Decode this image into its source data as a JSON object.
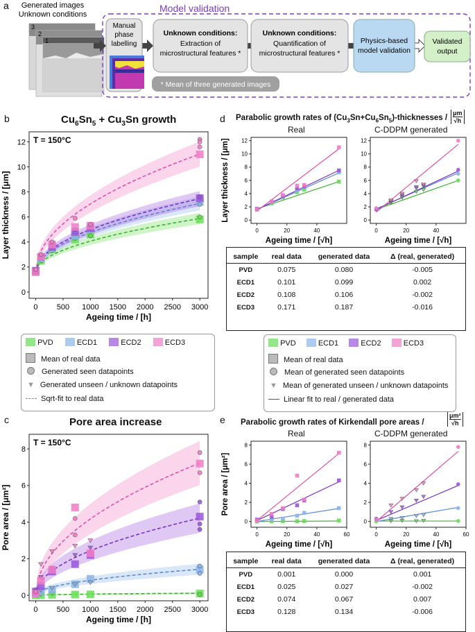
{
  "colors": {
    "PVD": "#66dd55",
    "ECD1": "#8ab4e8",
    "ECD2": "#9a55dc",
    "ECD3": "#f07cc4",
    "purple_frame": "#7a3cc8",
    "box_fill": "#e4e4e4",
    "physics_fill": "#b9d8f2",
    "validated_fill": "#d4f0c8"
  },
  "panel_a": {
    "label": "a",
    "gen_title_line1": "Generated images",
    "gen_title_line2": "Unknown conditions",
    "stack_numbers": [
      "3",
      "2",
      "1"
    ],
    "model_validation": "Model validation",
    "box1": [
      "Manual",
      "phase",
      "labelling"
    ],
    "box2_title": "Unknown conditions:",
    "box2_line1": "Extraction of",
    "box2_line2": "microstructural features *",
    "box3_title": "Unknown conditions:",
    "box3_line1": "Quantification of",
    "box3_line2": "microstructural features *",
    "box4": [
      "Physics-based",
      "model validation"
    ],
    "box5": [
      "Validated",
      "output"
    ],
    "note": "* Mean of three generated images"
  },
  "panel_b": {
    "label": "b",
    "title_parts": [
      "Cu",
      "6",
      "Sn",
      "5",
      " + Cu",
      "3",
      "Sn growth"
    ],
    "temp": "T = 150°C"
  },
  "panel_c": {
    "label": "c",
    "title": "Pore area increase",
    "temp": "T = 150°C"
  },
  "panel_d": {
    "label": "d",
    "title_pre": "Parabolic growth rates of (Cu",
    "title_mid": "Sn+Cu",
    "title_sub1": "3",
    "title_sub2": "6",
    "title_sub3": "5",
    "title_post": ")-thicknesses / ",
    "unit_num": "μm",
    "unit_den": "√h",
    "sub_real": "Real",
    "sub_gen": "C-DDPM generated",
    "table": {
      "headers": [
        "sample",
        "real data",
        "generated data",
        "Δ (real, generated)"
      ],
      "rows": [
        [
          "PVD",
          "0.075",
          "0.080",
          "-0.005"
        ],
        [
          "ECD1",
          "0.101",
          "0.099",
          "0.002"
        ],
        [
          "ECD2",
          "0.108",
          "0.106",
          "-0.002"
        ],
        [
          "ECD3",
          "0.171",
          "0.187",
          "-0.016"
        ]
      ]
    }
  },
  "panel_e": {
    "label": "e",
    "title": "Parabolic growth rates of Kirkendall pore areas / ",
    "unit_num": "μm²",
    "unit_den": "√h",
    "sub_real": "Real",
    "sub_gen": "C-DDPM generated",
    "table": {
      "headers": [
        "sample",
        "real data",
        "generated data",
        "Δ (real, generated)"
      ],
      "rows": [
        [
          "PVD",
          "0.001",
          "0.000",
          "0.001"
        ],
        [
          "ECD1",
          "0.025",
          "0.027",
          "-0.002"
        ],
        [
          "ECD2",
          "0.074",
          "0.067",
          "0.007"
        ],
        [
          "ECD3",
          "0.128",
          "0.134",
          "-0.006"
        ]
      ]
    }
  },
  "legend_left": {
    "series": [
      "PVD",
      "ECD1",
      "ECD2",
      "ECD3"
    ],
    "mean_real": "Mean of real data",
    "gen_seen": "Generated seen datapoints",
    "gen_unseen": "Generated unseen / unknown datapoints",
    "fit": "Sqrt-fit to real data"
  },
  "legend_right": {
    "series": [
      "PVD",
      "ECD1",
      "ECD2",
      "ECD3"
    ],
    "mean_real": "Mean of real data",
    "gen_seen": "Mean of generated seen datapoints",
    "gen_unseen": "Mean of generated unseen / unknown datapoints",
    "fit": "Linear fit to real / generated data"
  },
  "chart_data": [
    {
      "id": "b",
      "type": "scatter",
      "title": "Cu6Sn5 + Cu3Sn growth",
      "xlabel": "Ageing time / [h]",
      "ylabel": "Layer thickness / [μm]",
      "xlim": [
        -120,
        3150
      ],
      "ylim": [
        -0.5,
        12.8
      ],
      "xticks": [
        0,
        500,
        1000,
        1500,
        2000,
        2500,
        3000
      ],
      "yticks": [
        0,
        2,
        4,
        6,
        8,
        10,
        12
      ],
      "fit": "sqrt",
      "x": [
        0,
        96,
        300,
        720,
        1000,
        3000
      ],
      "series": [
        {
          "name": "PVD",
          "mean": [
            1.6,
            2.5,
            3.4,
            4.2,
            4.6,
            5.8
          ],
          "fit_a": 1.6,
          "fit_k": 0.078,
          "band": 0.45,
          "seen": [
            [
              0,
              1.55
            ],
            [
              96,
              2.5
            ],
            [
              300,
              3.3
            ],
            [
              720,
              4.3
            ],
            [
              1000,
              4.5
            ],
            [
              3000,
              6.0
            ]
          ],
          "unseen": []
        },
        {
          "name": "ECD1",
          "mean": [
            1.6,
            2.7,
            3.5,
            4.5,
            5.0,
            7.2
          ],
          "fit_a": 1.6,
          "fit_k": 0.1,
          "band": 0.55,
          "seen": [
            [
              0,
              1.7
            ],
            [
              96,
              2.8
            ],
            [
              300,
              3.6
            ],
            [
              720,
              4.8
            ],
            [
              1000,
              5.1
            ],
            [
              3000,
              7.0
            ]
          ],
          "unseen": []
        },
        {
          "name": "ECD2",
          "mean": [
            1.7,
            2.8,
            3.6,
            4.8,
            5.1,
            7.5
          ],
          "fit_a": 1.6,
          "fit_k": 0.107,
          "band": 0.6,
          "seen": [
            [
              0,
              1.6
            ],
            [
              96,
              2.9
            ],
            [
              300,
              3.8
            ],
            [
              720,
              5.0
            ],
            [
              1000,
              5.3
            ],
            [
              3000,
              7.6
            ]
          ],
          "unseen": []
        },
        {
          "name": "ECD3",
          "mean": [
            1.6,
            2.8,
            3.8,
            5.2,
            5.3,
            11.0
          ],
          "fit_a": 1.6,
          "fit_k": 0.172,
          "band": 1.0,
          "seen": [
            [
              0,
              1.8
            ],
            [
              96,
              3.0
            ],
            [
              300,
              4.0
            ],
            [
              720,
              5.9
            ],
            [
              1000,
              5.4
            ],
            [
              3000,
              12.2
            ],
            [
              3000,
              12.0
            ],
            [
              3000,
              11.6
            ]
          ],
          "unseen": []
        }
      ]
    },
    {
      "id": "c",
      "type": "scatter",
      "title": "Pore area increase",
      "xlabel": "Ageing time / [h]",
      "ylabel": "Pore area / [μm²]",
      "xlim": [
        -120,
        3150
      ],
      "ylim": [
        -0.3,
        8.8
      ],
      "xticks": [
        0,
        500,
        1000,
        1500,
        2000,
        2500,
        3000
      ],
      "yticks": [
        0,
        2,
        4,
        6,
        8
      ],
      "fit": "sqrt",
      "x": [
        0,
        96,
        300,
        720,
        1000,
        3000
      ],
      "series": [
        {
          "name": "PVD",
          "mean": [
            0.0,
            0.02,
            0.03,
            0.04,
            0.05,
            0.1
          ],
          "fit_a": 0.0,
          "fit_k": 0.002,
          "band": 0.05,
          "seen": [
            [
              0,
              0.02
            ],
            [
              3000,
              0.05
            ]
          ],
          "unseen": [
            [
              96,
              0.05
            ],
            [
              300,
              0.1
            ]
          ]
        },
        {
          "name": "ECD1",
          "mean": [
            0.1,
            0.2,
            0.3,
            0.6,
            0.9,
            1.4
          ],
          "fit_a": 0.0,
          "fit_k": 0.026,
          "band": 0.3,
          "seen": [
            [
              0,
              0.2
            ],
            [
              3000,
              1.6
            ],
            [
              3000,
              1.2
            ]
          ],
          "unseen": [
            [
              96,
              0.3
            ],
            [
              300,
              0.4
            ],
            [
              720,
              0.6
            ],
            [
              1000,
              0.7
            ]
          ]
        },
        {
          "name": "ECD2",
          "mean": [
            0.2,
            0.5,
            1.3,
            1.7,
            2.2,
            4.3
          ],
          "fit_a": 0.0,
          "fit_k": 0.077,
          "band": 0.8,
          "seen": [
            [
              0,
              0.3
            ],
            [
              3000,
              5.1
            ],
            [
              3000,
              3.9
            ],
            [
              3000,
              3.6
            ]
          ],
          "unseen": [
            [
              96,
              1.0
            ],
            [
              300,
              1.5
            ],
            [
              720,
              2.2
            ],
            [
              1000,
              2.6
            ]
          ]
        },
        {
          "name": "ECD3",
          "mean": [
            0.1,
            0.8,
            1.4,
            4.8,
            2.3,
            7.2
          ],
          "fit_a": 0.0,
          "fit_k": 0.132,
          "band": 1.2,
          "seen": [
            [
              0,
              0.2
            ],
            [
              720,
              4.2
            ],
            [
              720,
              3.3
            ],
            [
              3000,
              7.8
            ],
            [
              3000,
              6.7
            ]
          ],
          "unseen": [
            [
              96,
              1.7
            ],
            [
              300,
              2.4
            ],
            [
              720,
              2.7
            ],
            [
              1000,
              3.0
            ]
          ]
        }
      ]
    },
    {
      "id": "d_real",
      "type": "scatter",
      "title": "Real",
      "xlabel": "Ageing time / [√h]",
      "ylabel": "Layer thickness / [μm]",
      "xlim": [
        -4,
        60
      ],
      "ylim": [
        -0.5,
        12.5
      ],
      "xticks": [
        0,
        20,
        40
      ],
      "yticks": [
        0,
        2,
        4,
        6,
        8,
        10,
        12
      ],
      "x": [
        0,
        9.8,
        17.3,
        26.8,
        31.6,
        54.8
      ],
      "series": [
        {
          "name": "PVD",
          "points": [
            1.6,
            2.5,
            3.4,
            4.2,
            4.6,
            5.8
          ],
          "slope": 0.075,
          "intercept": 1.7
        },
        {
          "name": "ECD1",
          "points": [
            1.6,
            2.7,
            3.5,
            4.5,
            5.0,
            7.2
          ],
          "slope": 0.101,
          "intercept": 1.6
        },
        {
          "name": "ECD2",
          "points": [
            1.7,
            2.8,
            3.6,
            4.8,
            5.1,
            7.5
          ],
          "slope": 0.108,
          "intercept": 1.6
        },
        {
          "name": "ECD3",
          "points": [
            1.6,
            2.8,
            3.8,
            5.2,
            5.3,
            11.0
          ],
          "slope": 0.171,
          "intercept": 1.4
        }
      ]
    },
    {
      "id": "d_gen",
      "type": "scatter",
      "title": "C-DDPM generated",
      "xlabel": "Ageing time / [√h]",
      "ylabel": "",
      "xlim": [
        -4,
        60
      ],
      "ylim": [
        -0.5,
        12.5
      ],
      "xticks": [
        0,
        20,
        40
      ],
      "yticks": [
        0,
        2,
        4,
        6,
        8,
        10,
        12
      ],
      "x": [
        0,
        9.8,
        17.3,
        26.8,
        31.6,
        54.8
      ],
      "series": [
        {
          "name": "PVD",
          "points": [
            1.6,
            2.6,
            3.4,
            4.3,
            4.6,
            6.0
          ],
          "slope": 0.08,
          "intercept": 1.6
        },
        {
          "name": "ECD1",
          "points": [
            1.7,
            2.8,
            3.6,
            4.8,
            5.1,
            7.0
          ],
          "slope": 0.099,
          "intercept": 1.7
        },
        {
          "name": "ECD2",
          "points": [
            1.6,
            2.9,
            3.8,
            5.0,
            5.3,
            7.6
          ],
          "slope": 0.106,
          "intercept": 1.6
        },
        {
          "name": "ECD3",
          "points": [
            1.8,
            3.0,
            4.0,
            5.9,
            5.4,
            12.0
          ],
          "slope": 0.187,
          "intercept": 1.2
        }
      ]
    },
    {
      "id": "e_real",
      "type": "scatter",
      "title": "Real",
      "xlabel": "Ageing time / [√h]",
      "ylabel": "Pore area / [μm²]",
      "xlim": [
        -4,
        60
      ],
      "ylim": [
        -0.6,
        8.4
      ],
      "xticks": [
        0,
        20,
        40,
        60
      ],
      "yticks": [
        0,
        2,
        4,
        6,
        8
      ],
      "x": [
        0,
        9.8,
        17.3,
        26.8,
        31.6,
        54.8
      ],
      "series": [
        {
          "name": "PVD",
          "points": [
            0.0,
            0.02,
            0.03,
            0.04,
            0.05,
            0.1
          ],
          "slope": 0.001,
          "intercept": 0.0
        },
        {
          "name": "ECD1",
          "points": [
            0.1,
            0.2,
            0.3,
            0.6,
            0.9,
            1.4
          ],
          "slope": 0.025,
          "intercept": 0.0
        },
        {
          "name": "ECD2",
          "points": [
            0.2,
            0.5,
            1.3,
            1.7,
            2.2,
            4.3
          ],
          "slope": 0.074,
          "intercept": 0.1
        },
        {
          "name": "ECD3",
          "points": [
            0.1,
            0.8,
            1.4,
            4.8,
            2.3,
            7.2
          ],
          "slope": 0.128,
          "intercept": 0.1
        }
      ]
    },
    {
      "id": "e_gen",
      "type": "scatter",
      "title": "C-DDPM generated",
      "xlabel": "Ageing time / [√h]",
      "ylabel": "",
      "xlim": [
        -4,
        60
      ],
      "ylim": [
        -0.6,
        8.4
      ],
      "xticks": [
        0,
        20,
        40,
        60
      ],
      "yticks": [
        0,
        2,
        4,
        6,
        8
      ],
      "x": [
        0,
        9.8,
        17.3,
        26.8,
        31.6,
        54.8
      ],
      "series": [
        {
          "name": "PVD",
          "points": [
            0.0,
            0.05,
            0.1,
            0.05,
            0.1,
            0.05
          ],
          "slope": 0.0,
          "intercept": 0.05
        },
        {
          "name": "ECD1",
          "points": [
            0.2,
            0.3,
            0.4,
            0.6,
            0.7,
            1.4
          ],
          "slope": 0.027,
          "intercept": 0.0
        },
        {
          "name": "ECD2",
          "points": [
            0.3,
            1.0,
            1.5,
            2.2,
            2.6,
            3.9
          ],
          "slope": 0.067,
          "intercept": 0.1
        },
        {
          "name": "ECD3",
          "points": [
            0.2,
            1.7,
            2.4,
            3.3,
            4.0,
            7.8
          ],
          "slope": 0.134,
          "intercept": 0.0
        }
      ]
    }
  ]
}
